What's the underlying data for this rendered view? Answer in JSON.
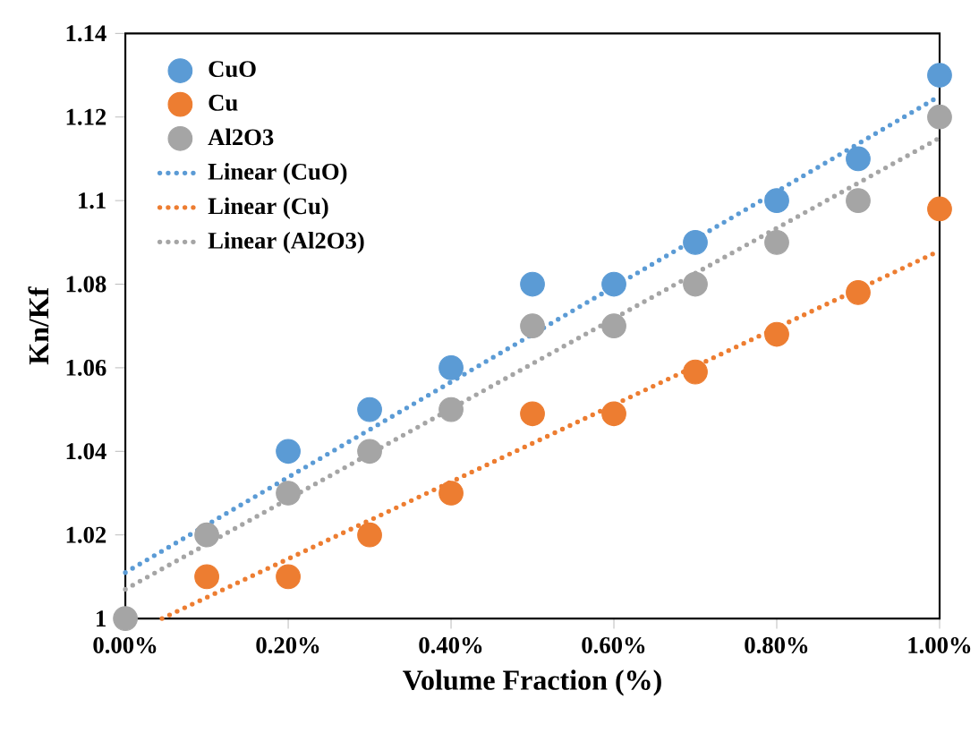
{
  "chart_data": {
    "type": "scatter",
    "xlabel": "Volume Fraction (%)",
    "ylabel": "Kn/Kf",
    "x": [
      0,
      0.1,
      0.2,
      0.3,
      0.4,
      0.5,
      0.6,
      0.7,
      0.8,
      0.9,
      1.0
    ],
    "series": [
      {
        "name": "CuO",
        "color": "#5b9bd5",
        "values": [
          null,
          null,
          1.04,
          1.05,
          1.06,
          1.08,
          1.08,
          1.09,
          1.1,
          1.11,
          1.13
        ]
      },
      {
        "name": "Cu",
        "color": "#ed7d31",
        "values": [
          null,
          1.01,
          1.01,
          1.02,
          1.03,
          1.049,
          1.049,
          1.059,
          1.068,
          1.078,
          1.098
        ]
      },
      {
        "name": "Al2O3",
        "color": "#a5a5a5",
        "values": [
          1.0,
          1.02,
          1.03,
          1.04,
          1.05,
          1.07,
          1.07,
          1.08,
          1.09,
          1.1,
          1.12
        ]
      },
      {
        "name": "Linear (CuO)",
        "type": "line",
        "marker": "none",
        "line_style": "dotted",
        "color": "#5b9bd5",
        "x": [
          0,
          1.0
        ],
        "values": [
          1.011,
          1.125
        ]
      },
      {
        "name": "Linear (Cu)",
        "type": "line",
        "marker": "none",
        "line_style": "dotted",
        "color": "#ed7d31",
        "x": [
          0.045,
          1.0
        ],
        "values": [
          1.0,
          1.088
        ]
      },
      {
        "name": "Linear (Al2O3)",
        "type": "line",
        "marker": "none",
        "line_style": "dotted",
        "color": "#a5a5a5",
        "x": [
          0,
          1.0
        ],
        "values": [
          1.007,
          1.115
        ]
      }
    ],
    "marker": "circle",
    "legend": "top left",
    "grid": false,
    "xlim": [
      0,
      1.0
    ],
    "ylim": [
      1.0,
      1.14
    ],
    "xticks": [
      {
        "value": 0,
        "label": "0.00%"
      },
      {
        "value": 0.2,
        "label": "0.20%"
      },
      {
        "value": 0.4,
        "label": "0.40%"
      },
      {
        "value": 0.6,
        "label": "0.60%"
      },
      {
        "value": 0.8,
        "label": "0.80%"
      },
      {
        "value": 1.0,
        "label": "1.00%"
      }
    ],
    "yticks": [
      1,
      1.02,
      1.04,
      1.06,
      1.08,
      1.1,
      1.12,
      1.14
    ]
  }
}
